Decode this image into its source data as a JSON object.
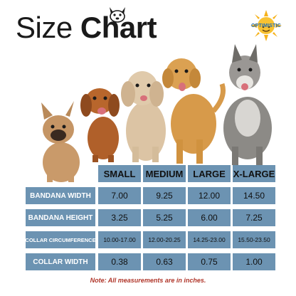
{
  "title": {
    "light": "Size ",
    "bold": "Chart"
  },
  "logo": {
    "text": "OPTIMISTIC"
  },
  "dogs": [
    "french-bulldog",
    "dachshund",
    "poodle",
    "golden-retriever",
    "wolf-dog"
  ],
  "columns": [
    "SMALL",
    "MEDIUM",
    "LARGE",
    "X-LARGE"
  ],
  "rows": [
    {
      "label": "BANDANA WIDTH",
      "values": [
        "7.00",
        "9.25",
        "12.00",
        "14.50"
      ]
    },
    {
      "label": "BANDANA HEIGHT",
      "values": [
        "3.25",
        "5.25",
        "6.00",
        "7.25"
      ]
    },
    {
      "label": "COLLAR CIRCUMFERENCE",
      "values": [
        "10.00-17.00",
        "12.00-20.25",
        "14.25-23.00",
        "15.50-23.50"
      ]
    },
    {
      "label": "COLLAR WIDTH",
      "values": [
        "0.38",
        "0.63",
        "0.75",
        "1.00"
      ]
    }
  ],
  "note": "Note: All measurements are in inches.",
  "colors": {
    "cell": "#6c93b2",
    "note": "#b0362a",
    "brand": "#1e6fb8"
  }
}
